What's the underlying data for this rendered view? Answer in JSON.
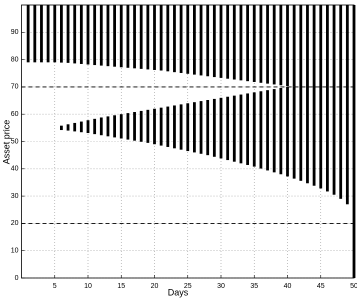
{
  "chart_data": {
    "type": "range_bar",
    "xlabel": "Days",
    "ylabel": "Asset price",
    "x": [
      1,
      2,
      3,
      4,
      5,
      6,
      7,
      8,
      9,
      10,
      11,
      12,
      13,
      14,
      15,
      16,
      17,
      18,
      19,
      20,
      21,
      22,
      23,
      24,
      25,
      26,
      27,
      28,
      29,
      30,
      31,
      32,
      33,
      34,
      35,
      36,
      37,
      38,
      39,
      40,
      41,
      42,
      43,
      44,
      45,
      46,
      47,
      48,
      49,
      50
    ],
    "series": [
      {
        "color": "#000000",
        "low": [
          79,
          79,
          79,
          79,
          79,
          78.9,
          78.8,
          78.6,
          78.4,
          78.2,
          78.0,
          77.8,
          77.6,
          77.4,
          77.2,
          77.0,
          76.8,
          76.6,
          76.4,
          76.2,
          76.0,
          75.7,
          75.4,
          75.1,
          74.8,
          74.5,
          74.2,
          73.9,
          73.6,
          73.3,
          73.0,
          72.7,
          72.4,
          72.1,
          71.8,
          71.5,
          71.2,
          70.9,
          70.6,
          70.3,
          70.0,
          null,
          null,
          null,
          null,
          null,
          null,
          null,
          null,
          null
        ],
        "high": [
          100,
          100,
          100,
          100,
          100,
          100,
          100,
          100,
          100,
          100,
          100,
          100,
          100,
          100,
          100,
          100,
          100,
          100,
          100,
          100,
          100,
          100,
          100,
          100,
          100,
          100,
          100,
          100,
          100,
          100,
          100,
          100,
          100,
          100,
          100,
          100,
          100,
          100,
          100,
          100,
          100,
          null,
          null,
          null,
          null,
          null,
          null,
          null,
          null,
          null
        ]
      },
      {
        "color": "#000000",
        "low": [
          null,
          null,
          null,
          null,
          null,
          54.2,
          54.0,
          53.7,
          53.4,
          53.1,
          52.7,
          52.3,
          51.9,
          51.5,
          51.1,
          50.7,
          50.3,
          49.9,
          49.5,
          49.0,
          48.5,
          48.0,
          47.5,
          47.0,
          46.5,
          46.0,
          45.5,
          45.0,
          44.4,
          43.8,
          43.2,
          42.6,
          42.0,
          41.4,
          40.8,
          40.1,
          39.4,
          38.7,
          38.0,
          37.2,
          36.4,
          35.6,
          34.7,
          33.8,
          32.8,
          31.7,
          30.5,
          29.0,
          27.0,
          0
        ],
        "high": [
          null,
          null,
          null,
          null,
          null,
          55.8,
          56.3,
          56.8,
          57.3,
          57.8,
          58.3,
          58.8,
          59.2,
          59.6,
          60.0,
          60.4,
          60.8,
          61.2,
          61.6,
          62.0,
          62.4,
          62.8,
          63.2,
          63.6,
          64.0,
          64.4,
          64.8,
          65.2,
          65.6,
          66.0,
          66.4,
          66.8,
          67.2,
          67.6,
          68.0,
          68.4,
          68.8,
          69.2,
          69.6,
          70.0,
          70.0,
          100,
          100,
          100,
          100,
          100,
          100,
          100,
          100,
          100
        ]
      }
    ],
    "hlines": [
      70,
      20
    ],
    "xlim": [
      0,
      50
    ],
    "ylim": [
      0,
      100
    ],
    "xticks": [
      5,
      10,
      15,
      20,
      25,
      30,
      35,
      40,
      45,
      50
    ],
    "yticks": [
      0,
      10,
      20,
      30,
      40,
      50,
      60,
      70,
      80,
      90
    ],
    "grid": true
  }
}
